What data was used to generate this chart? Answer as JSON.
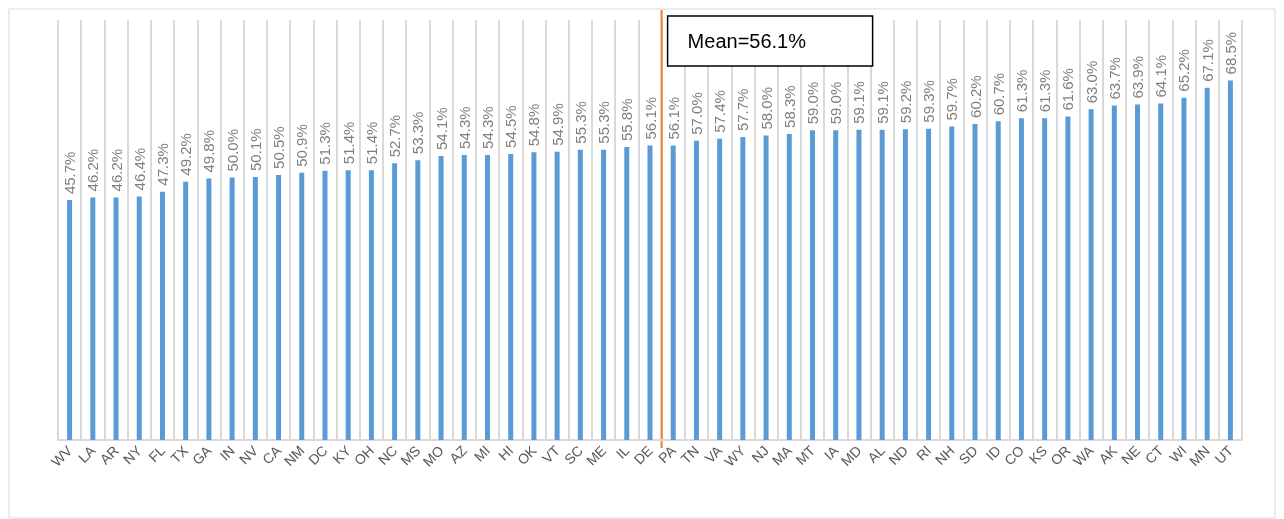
{
  "chart_data": {
    "type": "bar",
    "categories": [
      "WV",
      "LA",
      "AR",
      "NY",
      "FL",
      "TX",
      "GA",
      "IN",
      "NV",
      "CA",
      "NM",
      "DC",
      "KY",
      "OH",
      "NC",
      "MS",
      "MO",
      "AZ",
      "MI",
      "HI",
      "OK",
      "VT",
      "SC",
      "ME",
      "IL",
      "DE",
      "PA",
      "TN",
      "VA",
      "WY",
      "NJ",
      "MA",
      "MT",
      "IA",
      "MD",
      "AL",
      "ND",
      "RI",
      "NH",
      "SD",
      "ID",
      "CO",
      "KS",
      "OR",
      "WA",
      "AK",
      "NE",
      "CT",
      "WI",
      "MN",
      "UT"
    ],
    "values": [
      45.7,
      46.2,
      46.2,
      46.4,
      47.3,
      49.2,
      49.8,
      50.0,
      50.1,
      50.5,
      50.9,
      51.3,
      51.4,
      51.4,
      52.7,
      53.3,
      54.1,
      54.3,
      54.3,
      54.5,
      54.8,
      54.9,
      55.3,
      55.3,
      55.8,
      56.1,
      56.1,
      57.0,
      57.4,
      57.7,
      58.0,
      58.3,
      59.0,
      59.0,
      59.1,
      59.1,
      59.2,
      59.3,
      59.7,
      60.2,
      60.7,
      61.3,
      61.3,
      61.6,
      63.0,
      63.7,
      63.9,
      64.1,
      65.2,
      67.1,
      68.5
    ],
    "value_labels": [
      "45.7%",
      "46.2%",
      "46.2%",
      "46.4%",
      "47.3%",
      "49.2%",
      "49.8%",
      "50.0%",
      "50.1%",
      "50.5%",
      "50.9%",
      "51.3%",
      "51.4%",
      "51.4%",
      "52.7%",
      "53.3%",
      "54.1%",
      "54.3%",
      "54.3%",
      "54.5%",
      "54.8%",
      "54.9%",
      "55.3%",
      "55.3%",
      "55.8%",
      "56.1%",
      "56.1%",
      "57.0%",
      "57.4%",
      "57.7%",
      "58.0%",
      "58.3%",
      "59.0%",
      "59.0%",
      "59.1%",
      "59.1%",
      "59.2%",
      "59.3%",
      "59.7%",
      "60.2%",
      "60.7%",
      "61.3%",
      "61.3%",
      "61.6%",
      "63.0%",
      "63.7%",
      "63.9%",
      "64.1%",
      "65.2%",
      "67.1%",
      "68.5%"
    ],
    "color": "#5b9bd5",
    "grid": "x",
    "ref_lines": [
      {
        "axis": "x",
        "value": "DE",
        "label": "Mean=56.1%",
        "color": "#ed7d31"
      }
    ]
  }
}
